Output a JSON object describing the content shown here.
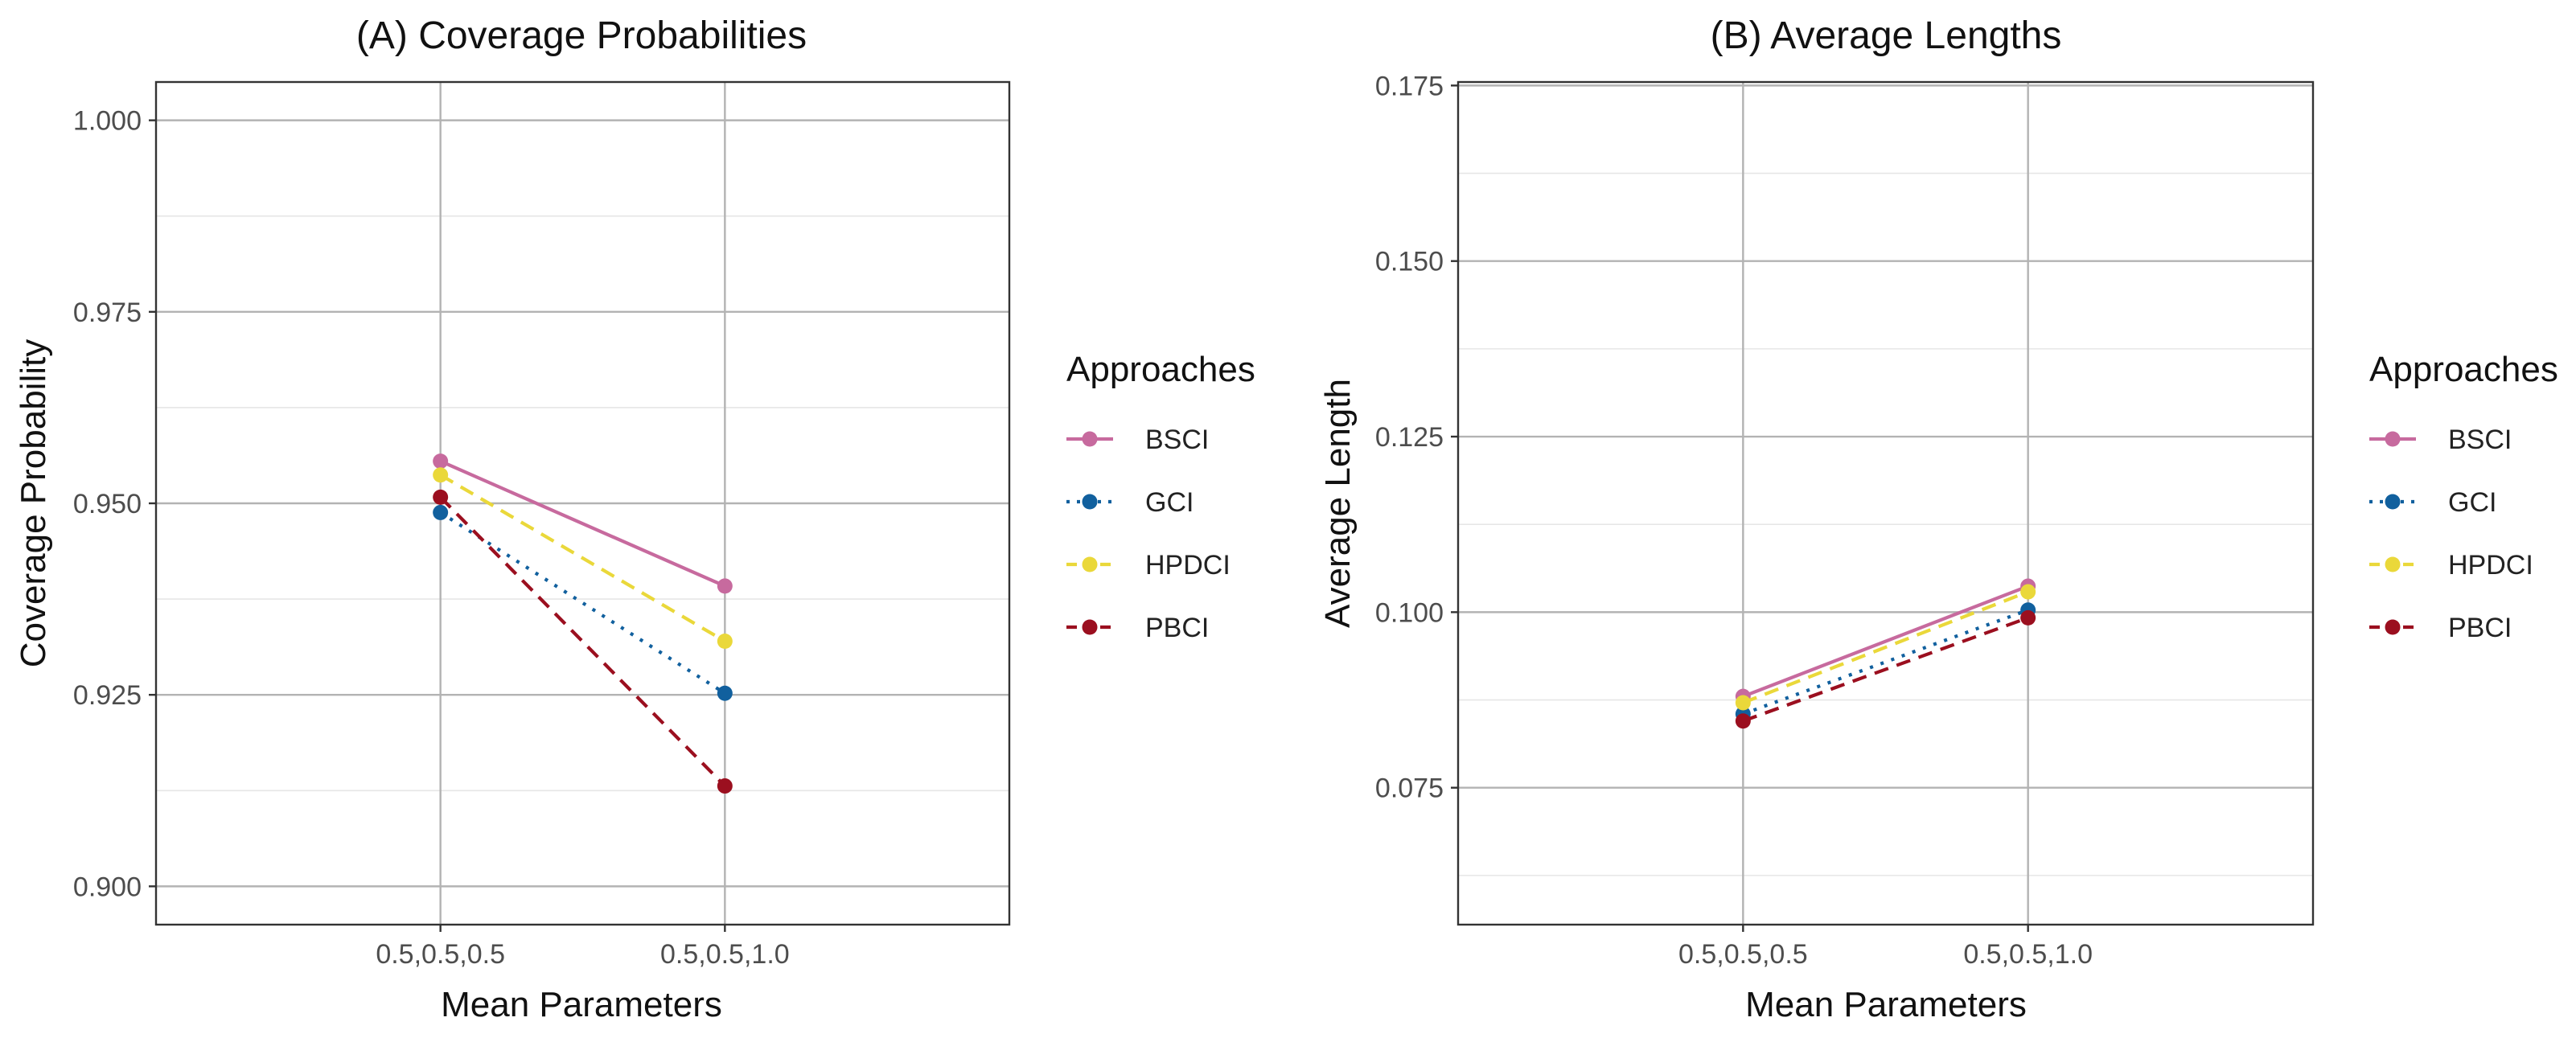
{
  "chart_data": [
    {
      "type": "line",
      "title": "(A) Coverage Probabilities",
      "xlabel": "Mean Parameters",
      "ylabel": "Coverage Probability",
      "categories": [
        "0.5,0.5,0.5",
        "0.5,0.5,1.0"
      ],
      "ylim": [
        0.895,
        1.005
      ],
      "yticks": [
        0.9,
        0.925,
        0.95,
        0.975,
        1.0
      ],
      "ytick_labels": [
        "0.900",
        "0.925",
        "0.950",
        "0.975",
        "1.000"
      ],
      "grid": true,
      "series": [
        {
          "name": "BSCI",
          "values": [
            0.9555,
            0.9392
          ],
          "color": "#c76a9e",
          "dash": "solid"
        },
        {
          "name": "GCI",
          "values": [
            0.9488,
            0.9252
          ],
          "color": "#11609e",
          "dash": "dotted"
        },
        {
          "name": "HPDCI",
          "values": [
            0.9537,
            0.932
          ],
          "color": "#ead83a",
          "dash": "dashed"
        },
        {
          "name": "PBCI",
          "values": [
            0.9508,
            0.9131
          ],
          "color": "#9b0f1f",
          "dash": "dashed"
        }
      ],
      "legend": {
        "title": "Approaches",
        "position": "right"
      }
    },
    {
      "type": "line",
      "title": "(B) Average Lengths",
      "xlabel": "Mean Parameters",
      "ylabel": "Average Length",
      "categories": [
        "0.5,0.5,0.5",
        "0.5,0.5,1.0"
      ],
      "ylim": [
        0.0555,
        0.1755
      ],
      "yticks": [
        0.075,
        0.1,
        0.125,
        0.15,
        0.175
      ],
      "ytick_labels": [
        "0.075",
        "0.100",
        "0.125",
        "0.150",
        "0.175"
      ],
      "grid": true,
      "series": [
        {
          "name": "BSCI",
          "values": [
            0.088,
            0.1037
          ],
          "color": "#c76a9e",
          "dash": "solid"
        },
        {
          "name": "GCI",
          "values": [
            0.0855,
            0.1003
          ],
          "color": "#11609e",
          "dash": "dotted"
        },
        {
          "name": "HPDCI",
          "values": [
            0.0871,
            0.1029
          ],
          "color": "#ead83a",
          "dash": "dashed"
        },
        {
          "name": "PBCI",
          "values": [
            0.0845,
            0.0992
          ],
          "color": "#9b0f1f",
          "dash": "dashed"
        }
      ],
      "legend": {
        "title": "Approaches",
        "position": "right"
      }
    }
  ]
}
